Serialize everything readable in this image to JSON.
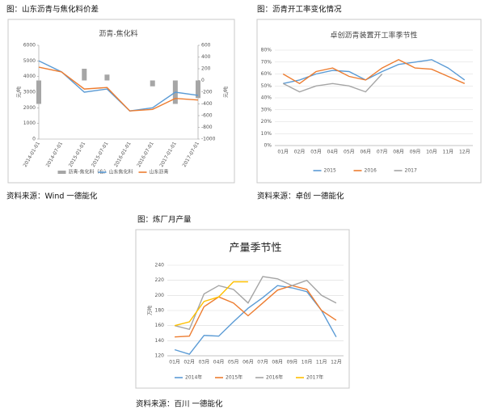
{
  "chart_data": [
    {
      "type": "line",
      "caption": "图：山东沥青与焦化料价差",
      "source": "资料来源：Wind 一德能化",
      "title": "沥青-焦化料",
      "ylabel": "元/吨",
      "y2label": "元/吨",
      "categories": [
        "2014-01-01",
        "2014-07-01",
        "2015-01-01",
        "2015-07-01",
        "2016-01-01",
        "2016-07-01",
        "2017-01-01",
        "2017-07-01"
      ],
      "ylim": [
        0,
        6000
      ],
      "yticks": [
        0,
        1000,
        2000,
        3000,
        4000,
        5000,
        6000
      ],
      "y2lim": [
        -1000,
        600
      ],
      "y2ticks": [
        -1000,
        -800,
        -600,
        -400,
        -200,
        0,
        200,
        400,
        600
      ],
      "series": [
        {
          "name": "沥青-焦化料（右）",
          "type": "bar",
          "axis": "y2",
          "color": "#a6a6a6",
          "values": [
            -400,
            0,
            200,
            100,
            0,
            -100,
            -400,
            -300
          ]
        },
        {
          "name": "山东焦化料",
          "color": "#5b9bd5",
          "values": [
            5000,
            4300,
            3000,
            3200,
            1800,
            2000,
            3000,
            2800
          ]
        },
        {
          "name": "山东沥青",
          "color": "#ed7d31",
          "values": [
            4600,
            4300,
            3200,
            3300,
            1800,
            1900,
            2600,
            2500
          ]
        }
      ]
    },
    {
      "type": "line",
      "caption": "图：沥青开工率变化情况",
      "source": "资料来源：卓创 一德能化",
      "title": "卓创沥青装置开工率季节性",
      "categories": [
        "01月",
        "02月",
        "03月",
        "04月",
        "05月",
        "06月",
        "07月",
        "08月",
        "09月",
        "10月",
        "11月",
        "12月"
      ],
      "ylim": [
        0,
        80
      ],
      "grid": true,
      "yticks": [
        {
          "value": 0,
          "label": "0%"
        },
        {
          "value": 10,
          "label": "10%"
        },
        {
          "value": 20,
          "label": "20%"
        },
        {
          "value": 30,
          "label": "30%"
        },
        {
          "value": 40,
          "label": "40%"
        },
        {
          "value": 50,
          "label": "50%"
        },
        {
          "value": 60,
          "label": "60%"
        },
        {
          "value": 70,
          "label": "70%"
        },
        {
          "value": 80,
          "label": "80%"
        }
      ],
      "series": [
        {
          "name": "2015",
          "color": "#5b9bd5",
          "values": [
            52,
            55,
            60,
            63,
            62,
            55,
            62,
            68,
            70,
            72,
            65,
            55
          ]
        },
        {
          "name": "2016",
          "color": "#ed7d31",
          "values": [
            60,
            52,
            62,
            65,
            58,
            55,
            65,
            72,
            65,
            64,
            58,
            52
          ]
        },
        {
          "name": "2017",
          "color": "#a5a5a5",
          "values": [
            52,
            45,
            50,
            52,
            50,
            45,
            60,
            null,
            null,
            null,
            null,
            null
          ]
        }
      ]
    },
    {
      "type": "line",
      "caption": "图：炼厂月产量",
      "source": "资料来源：百川 一德能化",
      "title": "产量季节性",
      "ylabel": "万吨",
      "categories": [
        "01月",
        "02月",
        "03月",
        "04月",
        "05月",
        "06月",
        "07月",
        "08月",
        "09月",
        "10月",
        "11月",
        "12月"
      ],
      "ylim": [
        120,
        240
      ],
      "yticks": [
        120,
        140,
        160,
        180,
        200,
        220,
        240
      ],
      "grid": true,
      "series": [
        {
          "name": "2014年",
          "color": "#5b9bd5",
          "values": [
            128,
            122,
            147,
            146,
            165,
            183,
            197,
            213,
            210,
            205,
            180,
            145
          ]
        },
        {
          "name": "2015年",
          "color": "#ed7d31",
          "values": [
            145,
            146,
            185,
            198,
            190,
            173,
            190,
            207,
            213,
            208,
            180,
            167
          ]
        },
        {
          "name": "2016年",
          "color": "#a5a5a5",
          "values": [
            160,
            155,
            202,
            213,
            208,
            190,
            225,
            222,
            213,
            220,
            200,
            190
          ]
        },
        {
          "name": "2017年",
          "color": "#ffc000",
          "values": [
            160,
            165,
            192,
            198,
            218,
            218,
            null,
            null,
            null,
            null,
            null,
            null
          ]
        }
      ]
    }
  ]
}
